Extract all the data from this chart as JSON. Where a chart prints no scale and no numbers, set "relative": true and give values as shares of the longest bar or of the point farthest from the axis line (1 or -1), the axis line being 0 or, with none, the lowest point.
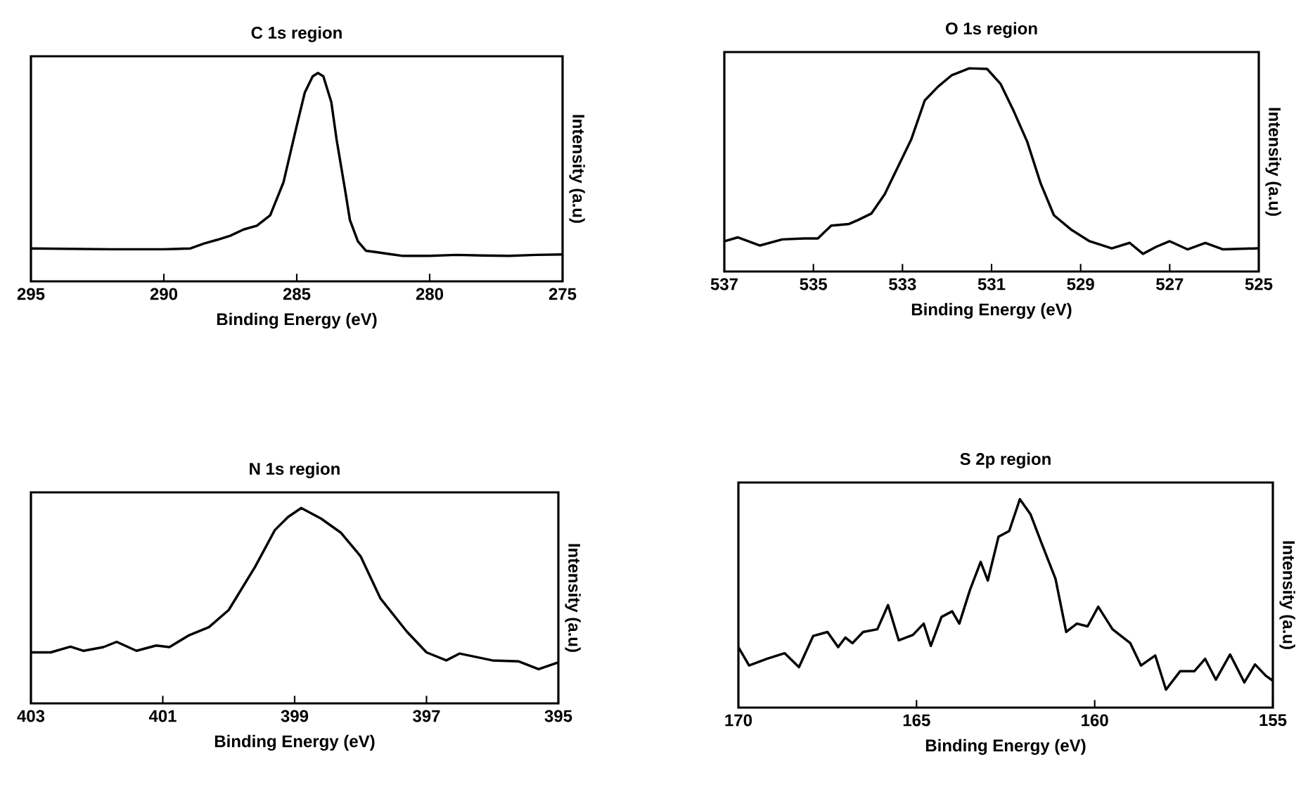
{
  "chart_data": [
    {
      "type": "line",
      "title": "C 1s region",
      "xlabel": "Binding Energy (eV)",
      "ylabel": "Intensity (a.u)",
      "relative": true,
      "tick_labels": "x",
      "xlim": [
        295,
        275
      ],
      "xticks": [
        295,
        290,
        285,
        280,
        275
      ],
      "x": [
        295,
        292,
        290,
        289,
        288.5,
        288,
        287.5,
        287,
        286.5,
        286,
        285.5,
        285,
        284.7,
        284.4,
        284.2,
        284.0,
        283.7,
        283.5,
        283.2,
        283,
        282.7,
        282.4,
        282,
        281.5,
        281,
        280,
        279,
        278,
        277,
        276,
        275
      ],
      "series": [
        {
          "color": "#000000",
          "values": [
            0.158,
            0.154,
            0.154,
            0.158,
            0.181,
            0.199,
            0.219,
            0.249,
            0.267,
            0.317,
            0.475,
            0.747,
            0.905,
            0.984,
            1,
            0.984,
            0.86,
            0.679,
            0.452,
            0.294,
            0.192,
            0.147,
            0.14,
            0.131,
            0.122,
            0.122,
            0.127,
            0.124,
            0.122,
            0.127,
            0.129
          ]
        }
      ]
    },
    {
      "type": "line",
      "title": "O 1s  region",
      "xlabel": "Binding Energy (eV)",
      "ylabel": "Intensity (a.u)",
      "relative": true,
      "tick_labels": "x",
      "xlim": [
        537,
        525
      ],
      "xticks": [
        537,
        535,
        533,
        531,
        529,
        527,
        525
      ],
      "x": [
        537,
        536.7,
        536.2,
        535.7,
        535.2,
        534.9,
        534.6,
        534.2,
        534.0,
        533.7,
        533.4,
        533.1,
        532.8,
        532.5,
        532.2,
        531.9,
        531.5,
        531.1,
        530.8,
        530.5,
        530.2,
        529.9,
        529.6,
        529.2,
        528.8,
        528.3,
        527.9,
        527.6,
        527.3,
        527,
        526.6,
        526.2,
        525.8,
        525
      ],
      "series": [
        {
          "color": "#000000",
          "values": [
            0.149,
            0.168,
            0.128,
            0.158,
            0.163,
            0.163,
            0.226,
            0.234,
            0.253,
            0.285,
            0.38,
            0.516,
            0.652,
            0.842,
            0.91,
            0.965,
            1,
            0.997,
            0.924,
            0.788,
            0.639,
            0.435,
            0.277,
            0.204,
            0.149,
            0.114,
            0.141,
            0.087,
            0.122,
            0.149,
            0.109,
            0.141,
            0.109,
            0.114
          ]
        }
      ]
    },
    {
      "type": "line",
      "title": "N 1s region",
      "xlabel": "Binding Energy (eV)",
      "ylabel": "Intensity (a.u)",
      "relative": true,
      "tick_labels": "x",
      "xlim": [
        403,
        395
      ],
      "xticks": [
        403,
        401,
        399,
        397,
        395
      ],
      "x": [
        403,
        402.7,
        402.4,
        402.2,
        401.9,
        401.7,
        401.4,
        401.1,
        400.9,
        400.6,
        400.3,
        400.0,
        399.6,
        399.3,
        399.1,
        398.9,
        398.6,
        398.3,
        398.0,
        397.7,
        397.3,
        397.0,
        396.7,
        396.5,
        396.0,
        395.6,
        395.3,
        395
      ],
      "series": [
        {
          "color": "#000000",
          "values": [
            0.261,
            0.261,
            0.29,
            0.269,
            0.288,
            0.315,
            0.269,
            0.296,
            0.288,
            0.349,
            0.39,
            0.478,
            0.699,
            0.887,
            0.954,
            1,
            0.946,
            0.874,
            0.753,
            0.538,
            0.368,
            0.261,
            0.22,
            0.255,
            0.22,
            0.215,
            0.175,
            0.21
          ]
        }
      ]
    },
    {
      "type": "line",
      "title": "S 2p  region",
      "xlabel": "Binding Energy (eV)",
      "ylabel": "Intensity (a.u)",
      "relative": true,
      "tick_labels": "x",
      "xlim": [
        170,
        155
      ],
      "xticks": [
        170,
        165,
        160,
        155
      ],
      "x": [
        170,
        169.7,
        169.2,
        168.7,
        168.3,
        167.9,
        167.5,
        167.2,
        167.0,
        166.8,
        166.5,
        166.1,
        165.8,
        165.5,
        165.1,
        164.8,
        164.6,
        164.3,
        164.0,
        163.8,
        163.5,
        163.2,
        163.0,
        162.7,
        162.4,
        162.1,
        161.8,
        161.5,
        161.1,
        160.8,
        160.5,
        160.2,
        159.9,
        159.5,
        159.0,
        158.7,
        158.3,
        158.0,
        157.6,
        157.2,
        156.9,
        156.6,
        156.2,
        155.8,
        155.5,
        155.2,
        155
      ],
      "series": [
        {
          "color": "#000000",
          "values": [
            0.29,
            0.202,
            0.234,
            0.261,
            0.194,
            0.344,
            0.363,
            0.29,
            0.336,
            0.309,
            0.363,
            0.376,
            0.492,
            0.323,
            0.349,
            0.403,
            0.296,
            0.435,
            0.462,
            0.403,
            0.565,
            0.699,
            0.61,
            0.82,
            0.847,
            1,
            0.927,
            0.793,
            0.618,
            0.363,
            0.403,
            0.39,
            0.484,
            0.376,
            0.309,
            0.202,
            0.25,
            0.086,
            0.175,
            0.175,
            0.234,
            0.134,
            0.255,
            0.121,
            0.207,
            0.153,
            0.129
          ]
        }
      ]
    }
  ]
}
